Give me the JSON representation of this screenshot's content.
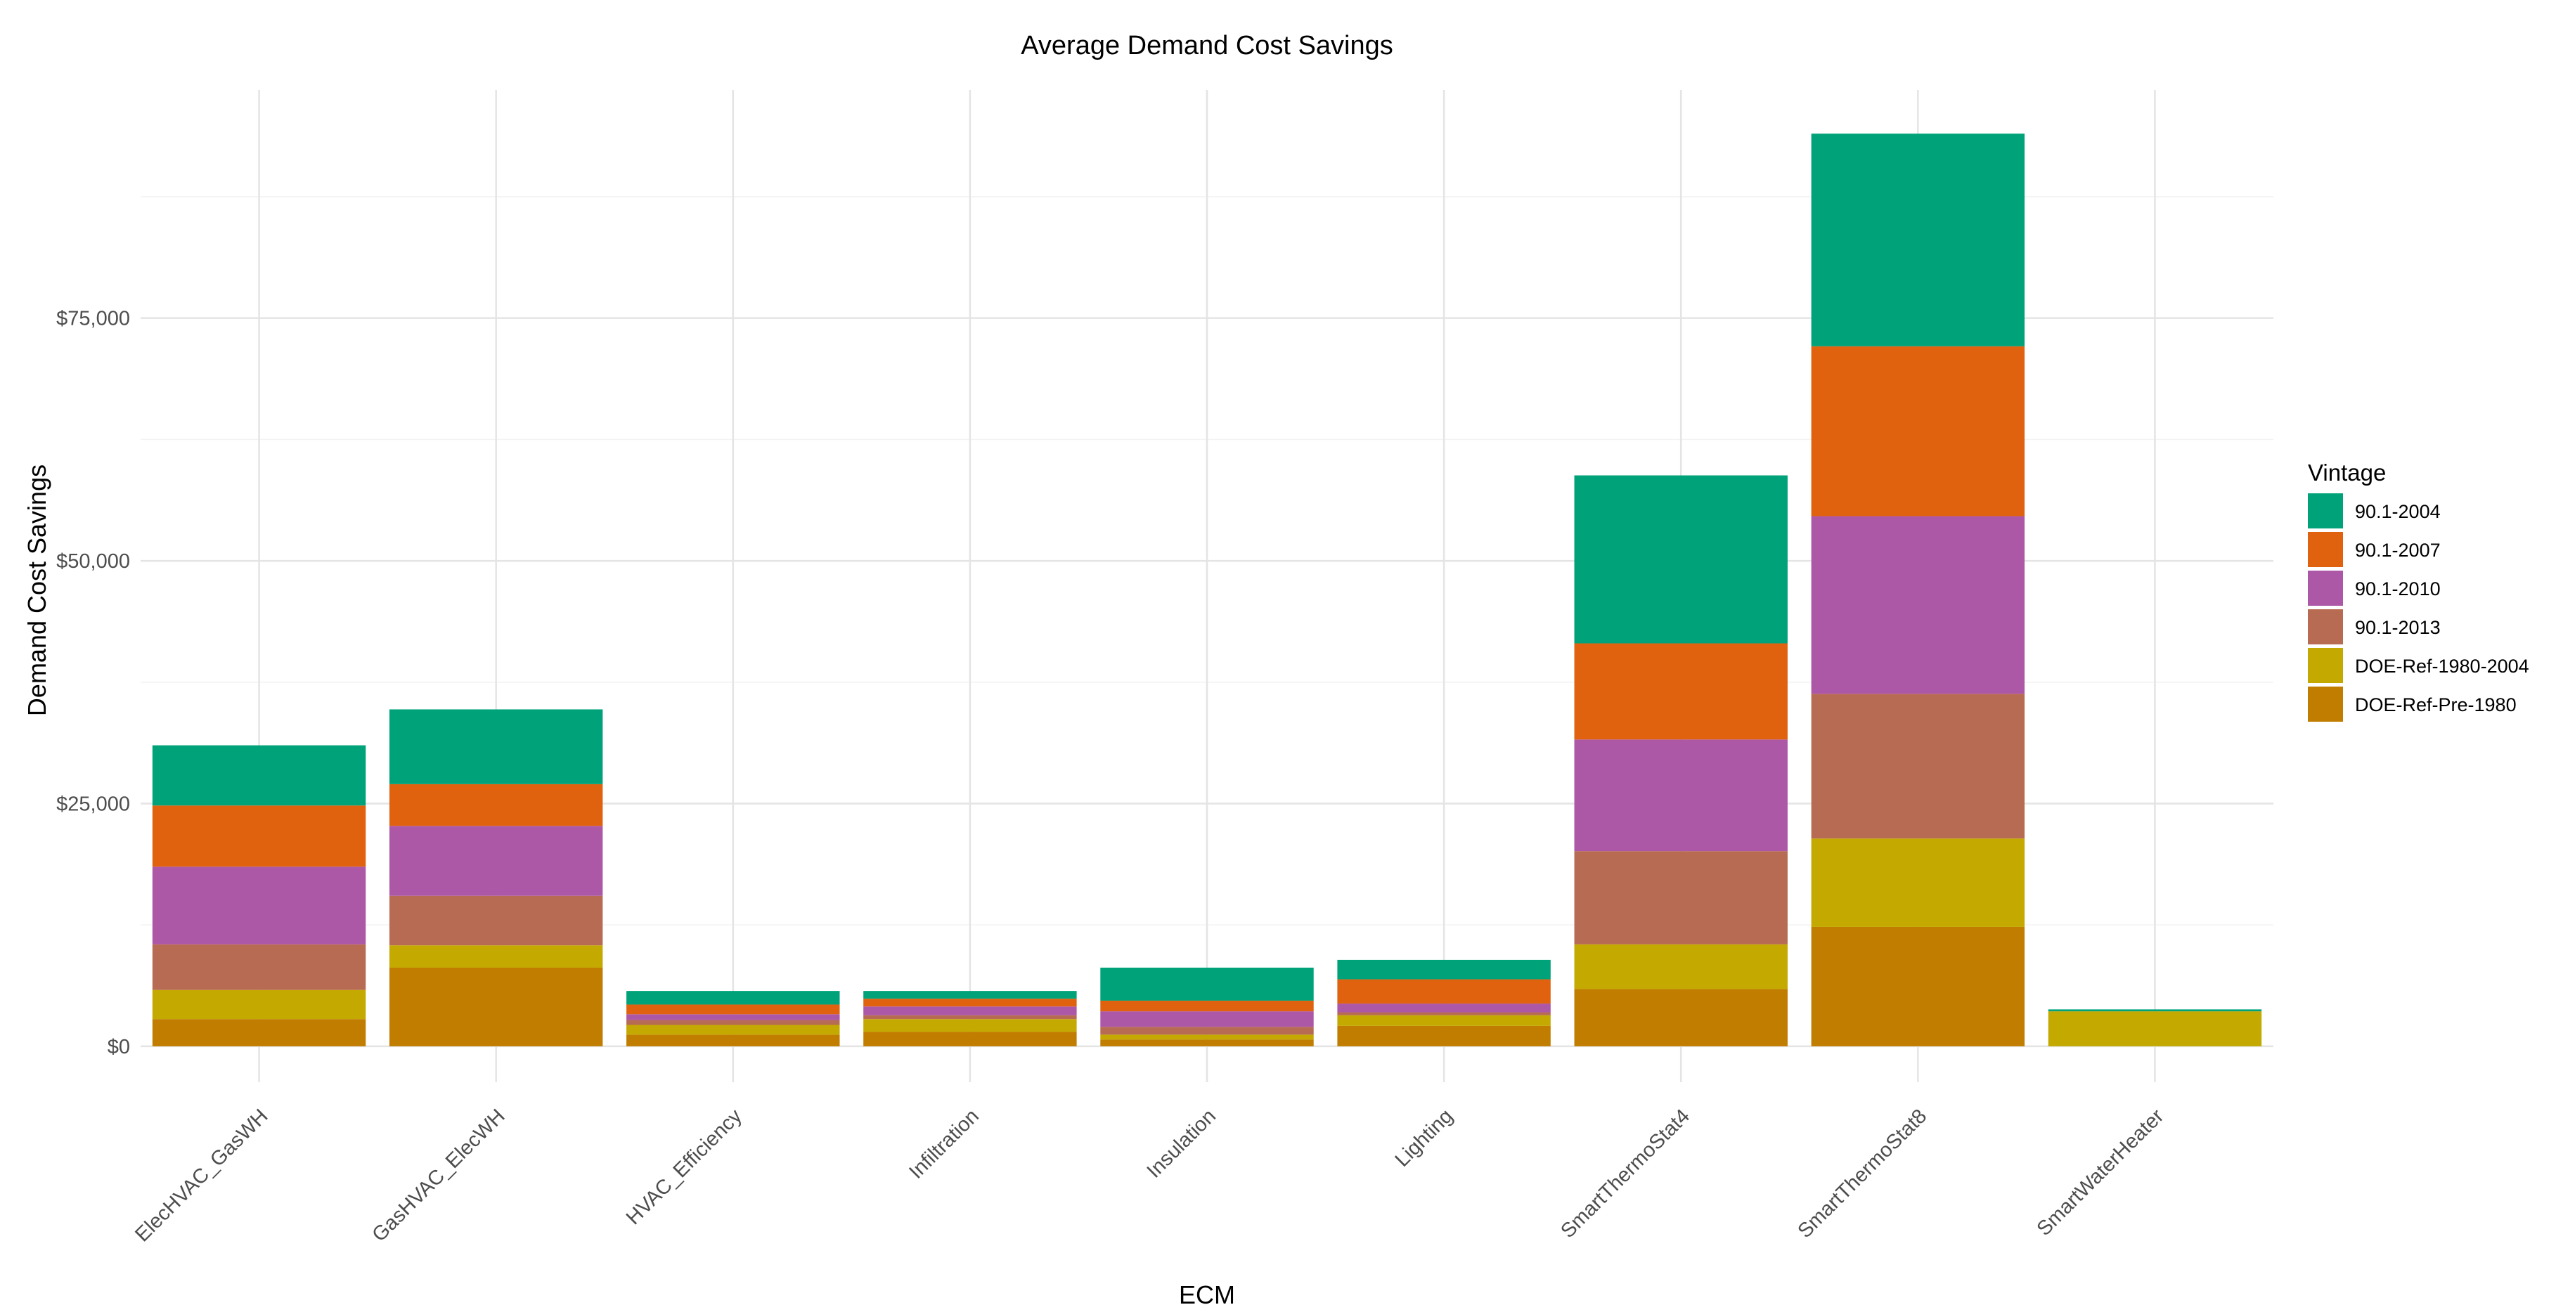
{
  "chart_data": {
    "type": "bar",
    "stacked": true,
    "title": "Average Demand Cost Savings",
    "xlabel": "ECM",
    "ylabel": "Demand Cost Savings",
    "ylim": [
      -3700,
      98500
    ],
    "y_ticks": [
      0,
      25000,
      50000,
      75000
    ],
    "y_tick_labels": [
      "$0",
      "$25,000",
      "$50,000",
      "$75,000"
    ],
    "grid": true,
    "legend_position": "right",
    "legend_title": "Vintage",
    "categories": [
      "ElecHVAC_GasWH",
      "GasHVAC_ElecWH",
      "HVAC_Efficiency",
      "Infiltration",
      "Insulation",
      "Lighting",
      "SmartThermoStat4",
      "SmartThermoStat8",
      "SmartWaterHeater"
    ],
    "series": [
      {
        "name": "DOE-Ref-Pre-1980",
        "color": "#C17D00",
        "values": [
          2800,
          8100,
          1200,
          1500,
          700,
          2100,
          5900,
          12300,
          0
        ]
      },
      {
        "name": "DOE-Ref-1980-2004",
        "color": "#C3A900",
        "values": [
          3000,
          2300,
          1000,
          1300,
          500,
          1100,
          4600,
          9100,
          3600
        ]
      },
      {
        "name": "90.1-2013",
        "color": "#B76B52",
        "values": [
          4700,
          5100,
          500,
          400,
          800,
          300,
          9600,
          14900,
          0
        ]
      },
      {
        "name": "90.1-2010",
        "color": "#AD57A7",
        "values": [
          8000,
          7200,
          600,
          900,
          1600,
          900,
          11500,
          18300,
          0
        ]
      },
      {
        "name": "90.1-2007",
        "color": "#E0620F",
        "values": [
          6300,
          4300,
          1000,
          800,
          1100,
          2500,
          9900,
          17500,
          0
        ]
      },
      {
        "name": "90.1-2004",
        "color": "#00A279",
        "values": [
          6200,
          7700,
          1400,
          800,
          3400,
          2000,
          17300,
          21900,
          200
        ]
      }
    ]
  }
}
